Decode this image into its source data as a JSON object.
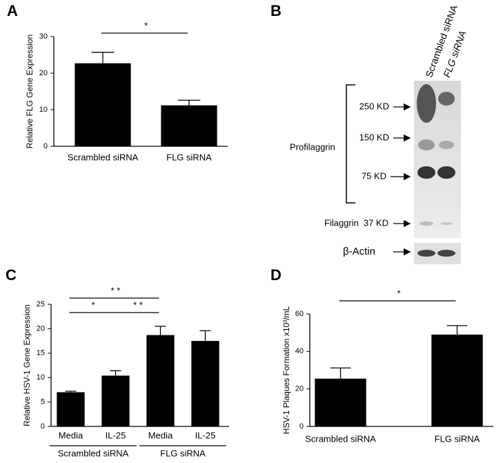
{
  "chart_data": [
    {
      "panel": "A",
      "type": "bar",
      "ylabel": "Relative FLG Gene Expression",
      "categories": [
        "Scrambled siRNA",
        "FLG siRNA"
      ],
      "values": [
        22.7,
        11.2
      ],
      "errors": [
        3.0,
        1.4
      ],
      "color": "#000000",
      "ylim": [
        0,
        30
      ],
      "yticks": [
        0,
        10,
        20,
        30
      ],
      "annotations": [
        {
          "label": "*",
          "between": [
            0,
            1
          ]
        }
      ]
    },
    {
      "panel": "C",
      "type": "bar",
      "ylabel": "Relative HSV-1 Gene Expression",
      "categories": [
        "Media",
        "IL-25",
        "Media",
        "IL-25"
      ],
      "groups": [
        "Scrambled siRNA",
        "FLG siRNA"
      ],
      "values": [
        7.0,
        10.4,
        18.7,
        17.5
      ],
      "errors": [
        0.2,
        1.0,
        1.8,
        2.1
      ],
      "color": "#000000",
      "ylim": [
        0,
        25
      ],
      "yticks": [
        0,
        5,
        10,
        15,
        20,
        25
      ],
      "annotations": [
        {
          "label": "* *",
          "between": [
            0,
            2
          ]
        },
        {
          "label": "*",
          "between": [
            0,
            1
          ]
        },
        {
          "label": "* *",
          "between": [
            1,
            2
          ]
        }
      ]
    },
    {
      "panel": "D",
      "type": "bar",
      "ylabel": "HSV-1 Plaques Formation x10³/mL",
      "categories": [
        "Scrambled siRNA",
        "FLG siRNA"
      ],
      "values": [
        25.5,
        49.0
      ],
      "errors": [
        5.7,
        4.8
      ],
      "color": "#000000",
      "ylim": [
        0,
        60
      ],
      "yticks": [
        0,
        20,
        40,
        60
      ],
      "annotations": [
        {
          "label": "*",
          "between": [
            0,
            1
          ]
        }
      ]
    }
  ],
  "blot": {
    "panel": "B",
    "lanes": [
      "Scrambled siRNA",
      "FLG siRNA"
    ],
    "group_label": "Profilaggrin",
    "markers": [
      "250 KD",
      "150 KD",
      "75 KD"
    ],
    "filaggrin_label": "Filaggrin",
    "filaggrin_marker": "37 KD",
    "loading_control": "β-Actin"
  }
}
